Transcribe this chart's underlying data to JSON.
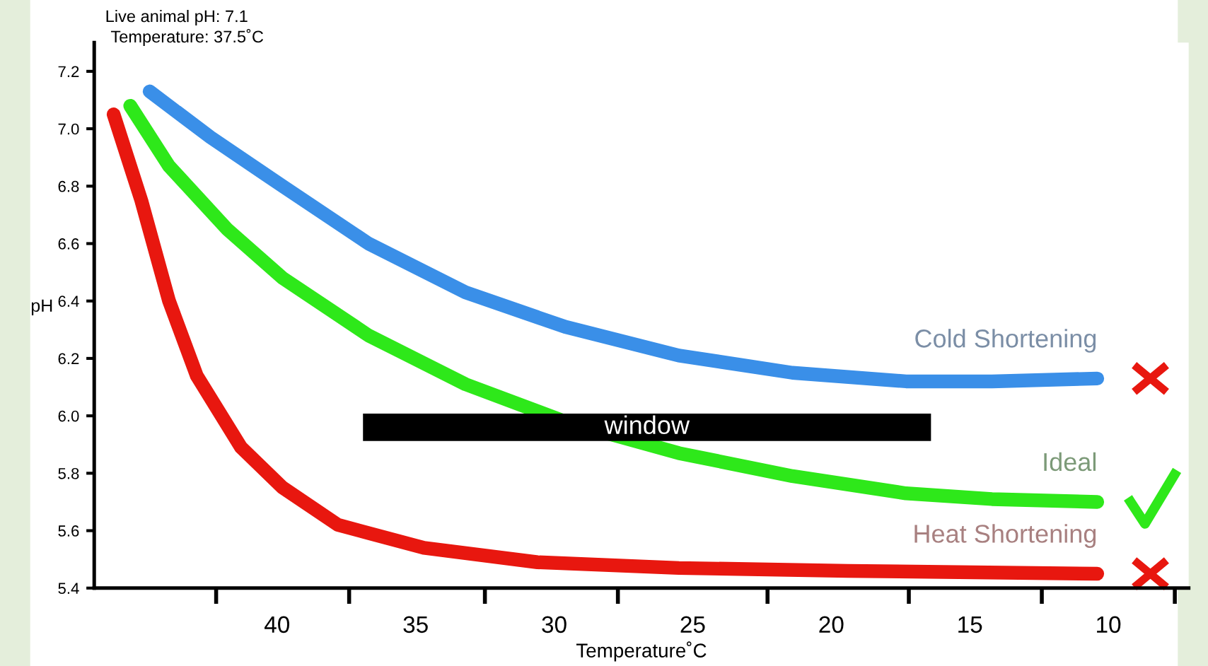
{
  "chart_data": {
    "type": "line",
    "xlabel": "Temperature˚C",
    "ylabel": "pH",
    "xlim": [
      46.6,
      7.1
    ],
    "ylim": [
      5.4,
      7.3
    ],
    "xticks": [
      {
        "value": 42.2,
        "label": null
      },
      {
        "value": 40,
        "label": "40"
      },
      {
        "value": 37.4,
        "label": null
      },
      {
        "value": 35,
        "label": "35"
      },
      {
        "value": 32.5,
        "label": null
      },
      {
        "value": 30,
        "label": "30"
      },
      {
        "value": 27.7,
        "label": null
      },
      {
        "value": 25,
        "label": "25"
      },
      {
        "value": 22.3,
        "label": null
      },
      {
        "value": 20,
        "label": "20"
      },
      {
        "value": 17.2,
        "label": null
      },
      {
        "value": 15,
        "label": "15"
      },
      {
        "value": 12.4,
        "label": null
      },
      {
        "value": 10,
        "label": "10"
      },
      {
        "value": 7.6,
        "label": null
      }
    ],
    "yticks": [
      5.4,
      5.6,
      5.8,
      {
        "value": 6,
        "label": "6.0"
      },
      6.2,
      6.4,
      6.6,
      6.8,
      {
        "value": 7,
        "label": "7.0"
      },
      7.2
    ],
    "grid": false,
    "legend": false,
    "marker": "none",
    "line_style": "solid",
    "annotations": [
      "Live animal pH: 7.1",
      "Temperature: 37.5˚C"
    ],
    "series": [
      {
        "name": "Cold Shortening",
        "color": "#3a8fe8",
        "x": [
          44.6,
          42.4,
          39.8,
          36.7,
          33.2,
          29.6,
          25.5,
          21.4,
          17.3,
          14.2,
          10.4
        ],
        "values": [
          7.13,
          6.97,
          6.8,
          6.6,
          6.43,
          6.31,
          6.21,
          6.15,
          6.12,
          6.12,
          6.13
        ]
      },
      {
        "name": "Ideal",
        "color": "#2ee81a",
        "x": [
          45.3,
          43.9,
          41.8,
          39.8,
          36.7,
          33.2,
          29.6,
          25.5,
          21.4,
          17.3,
          14.2,
          10.4
        ],
        "values": [
          7.08,
          6.87,
          6.65,
          6.48,
          6.28,
          6.11,
          5.98,
          5.87,
          5.79,
          5.73,
          5.71,
          5.7
        ]
      },
      {
        "name": "Heat Shortening",
        "color": "#e8170f",
        "x": [
          45.9,
          44.9,
          43.9,
          42.9,
          41.3,
          39.8,
          37.8,
          34.7,
          30.6,
          25.5,
          19.4,
          10.4
        ],
        "values": [
          7.05,
          6.75,
          6.4,
          6.14,
          5.89,
          5.75,
          5.62,
          5.54,
          5.49,
          5.47,
          5.46,
          5.45
        ]
      },
      {
        "name": "window",
        "color": "#000000",
        "x": [
          36.9,
          16.4
        ],
        "values": [
          5.96,
          5.96
        ]
      }
    ]
  }
}
